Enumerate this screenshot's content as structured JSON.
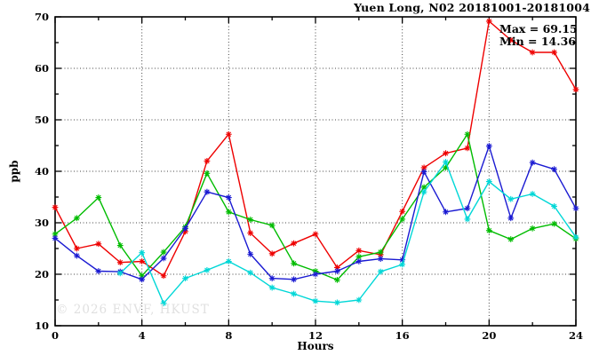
{
  "title": "Yuen Long, N02 20181001-20181004",
  "annotation": {
    "max_label": "Max = 69.15",
    "min_label": "Min = 14.36"
  },
  "watermark": "© 2026 ENVF, HKUST",
  "chart_data": {
    "type": "line",
    "title": "Yuen Long, N02 20181001-20181004",
    "xlabel": "Hours",
    "ylabel": "ppb",
    "xlim": [
      0,
      24
    ],
    "ylim": [
      10,
      70
    ],
    "x_ticks": [
      0,
      4,
      8,
      12,
      16,
      20,
      24
    ],
    "y_ticks": [
      10,
      20,
      30,
      40,
      50,
      60,
      70
    ],
    "x_minor_step": 2,
    "y_minor_step": 5,
    "grid": "dotted lines at major ticks, all four axes with inward ticks",
    "legend_position": "none",
    "stat_max": 69.15,
    "stat_min": 14.36,
    "x": [
      0,
      1,
      2,
      3,
      4,
      5,
      6,
      7,
      8,
      9,
      10,
      11,
      12,
      13,
      14,
      15,
      16,
      17,
      18,
      19,
      20,
      21,
      22,
      23,
      24
    ],
    "series": [
      {
        "name": "series-red",
        "color": "#ee0000",
        "values": [
          33.0,
          25.0,
          25.9,
          22.3,
          22.5,
          19.7,
          28.3,
          42.0,
          47.2,
          28.0,
          24.0,
          26.0,
          27.8,
          21.3,
          24.6,
          23.8,
          32.2,
          40.7,
          43.5,
          44.5,
          69.15,
          65.5,
          63.1,
          63.1,
          55.9
        ]
      },
      {
        "name": "series-green",
        "color": "#00bc00",
        "values": [
          27.8,
          30.9,
          34.9,
          25.6,
          19.7,
          24.3,
          29.2,
          39.6,
          32.1,
          30.6,
          29.5,
          22.1,
          20.6,
          18.9,
          23.4,
          24.3,
          30.7,
          36.9,
          40.7,
          47.2,
          28.5,
          26.8,
          28.9,
          29.8,
          26.9
        ]
      },
      {
        "name": "series-blue",
        "color": "#1a1ad2",
        "values": [
          27.0,
          23.6,
          20.6,
          20.5,
          19.0,
          23.1,
          28.9,
          36.0,
          34.9,
          23.9,
          19.2,
          19.0,
          20.0,
          20.6,
          22.5,
          23.0,
          22.8,
          39.9,
          32.1,
          32.8,
          44.9,
          30.9,
          41.7,
          40.4,
          32.8
        ]
      },
      {
        "name": "series-cyan",
        "color": "#00d7d7",
        "values": [
          null,
          null,
          null,
          20.2,
          24.2,
          14.36,
          19.2,
          20.8,
          22.5,
          20.3,
          17.4,
          16.2,
          14.8,
          14.5,
          15.0,
          20.5,
          21.9,
          36.0,
          41.8,
          30.7,
          38.0,
          34.6,
          35.6,
          33.2,
          27.2
        ]
      }
    ]
  }
}
